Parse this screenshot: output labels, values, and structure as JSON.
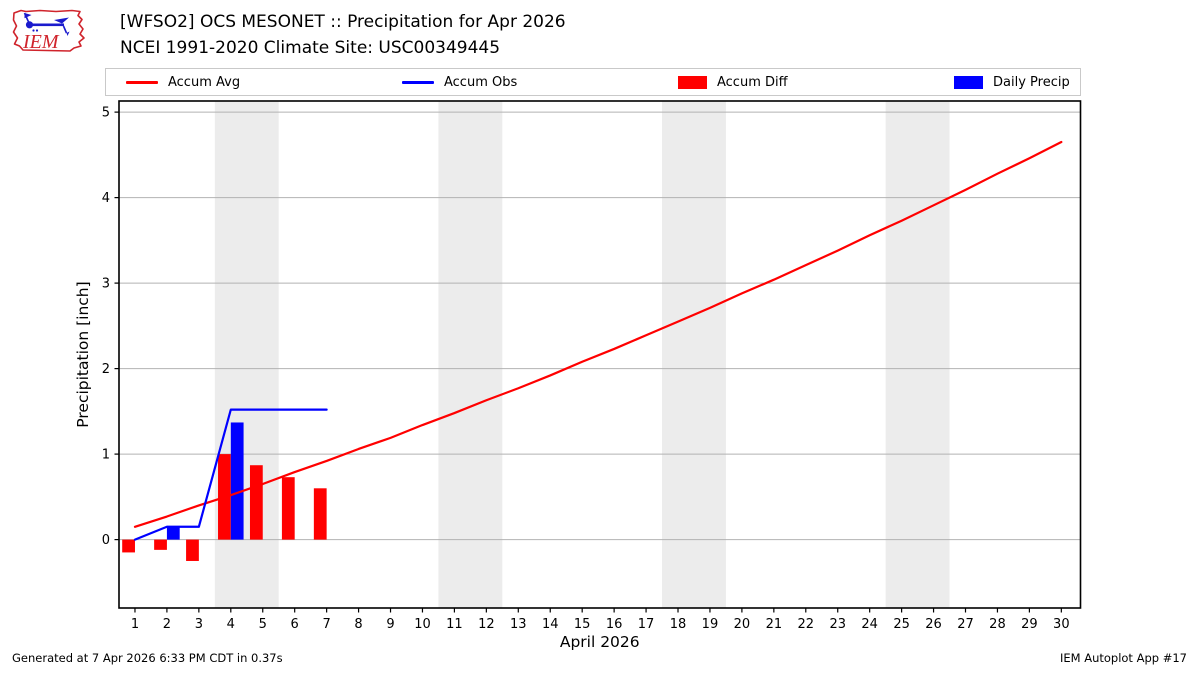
{
  "header": {
    "logo_text": "IEM"
  },
  "legend": {
    "items": [
      {
        "label": "Accum Avg",
        "type": "line",
        "color": "#ff0000"
      },
      {
        "label": "Accum Obs",
        "type": "line",
        "color": "#0000ff"
      },
      {
        "label": "Accum Diff",
        "type": "box",
        "color": "#ff0000"
      },
      {
        "label": "Daily Precip",
        "type": "box",
        "color": "#0000ff"
      }
    ]
  },
  "footer": {
    "left": "Generated at 7 Apr 2026 6:33 PM CDT in 0.37s",
    "right": "IEM Autoplot App #17"
  },
  "chart_data": {
    "type": "line+bar",
    "title": "[WFSO2] OCS MESONET :: Precipitation for Apr 2026",
    "subtitle": "NCEI 1991-2020 Climate Site: USC00349445",
    "xlabel": "April 2026",
    "ylabel": "Precipitation [inch]",
    "xlim": [
      0.5,
      30.6
    ],
    "ylim": [
      -0.8,
      5.13
    ],
    "xticks": [
      1,
      2,
      3,
      4,
      5,
      6,
      7,
      8,
      9,
      10,
      11,
      12,
      13,
      14,
      15,
      16,
      17,
      18,
      19,
      20,
      21,
      22,
      23,
      24,
      25,
      26,
      27,
      28,
      29,
      30
    ],
    "yticks": [
      0,
      1,
      2,
      3,
      4,
      5
    ],
    "grid": "horizontal",
    "legend_position": "top",
    "weekend_bands": [
      [
        3.5,
        5.5
      ],
      [
        10.5,
        12.5
      ],
      [
        17.5,
        19.5
      ],
      [
        24.5,
        26.5
      ]
    ],
    "colors": {
      "band": "#ececec",
      "grid": "#b2b2b2",
      "axis": "#000000"
    },
    "series": [
      {
        "name": "Accum Avg",
        "type": "line",
        "color": "#ff0000",
        "x": [
          1,
          2,
          3,
          4,
          5,
          6,
          7,
          8,
          9,
          10,
          11,
          12,
          13,
          14,
          15,
          16,
          17,
          18,
          19,
          20,
          21,
          22,
          23,
          24,
          25,
          26,
          27,
          28,
          29,
          30
        ],
        "values": [
          0.15,
          0.27,
          0.4,
          0.52,
          0.65,
          0.79,
          0.92,
          1.06,
          1.19,
          1.34,
          1.48,
          1.63,
          1.77,
          1.92,
          2.08,
          2.23,
          2.39,
          2.55,
          2.71,
          2.88,
          3.04,
          3.21,
          3.38,
          3.56,
          3.73,
          3.91,
          4.09,
          4.28,
          4.46,
          4.65
        ]
      },
      {
        "name": "Accum Obs",
        "type": "line",
        "color": "#0000ff",
        "x": [
          1,
          2,
          3,
          4,
          5,
          6,
          7
        ],
        "values": [
          0.0,
          0.15,
          0.15,
          1.52,
          1.52,
          1.52,
          1.52
        ]
      },
      {
        "name": "Accum Diff",
        "type": "bar",
        "color": "#ff0000",
        "offset": -0.4,
        "width": 0.4,
        "x": [
          1,
          2,
          3,
          4,
          5,
          6,
          7
        ],
        "values": [
          -0.15,
          -0.12,
          -0.25,
          1.0,
          0.87,
          0.73,
          0.6
        ]
      },
      {
        "name": "Daily Precip",
        "type": "bar",
        "color": "#0000ff",
        "offset": 0,
        "width": 0.4,
        "x": [
          2,
          4
        ],
        "values": [
          0.15,
          1.37
        ]
      }
    ]
  }
}
